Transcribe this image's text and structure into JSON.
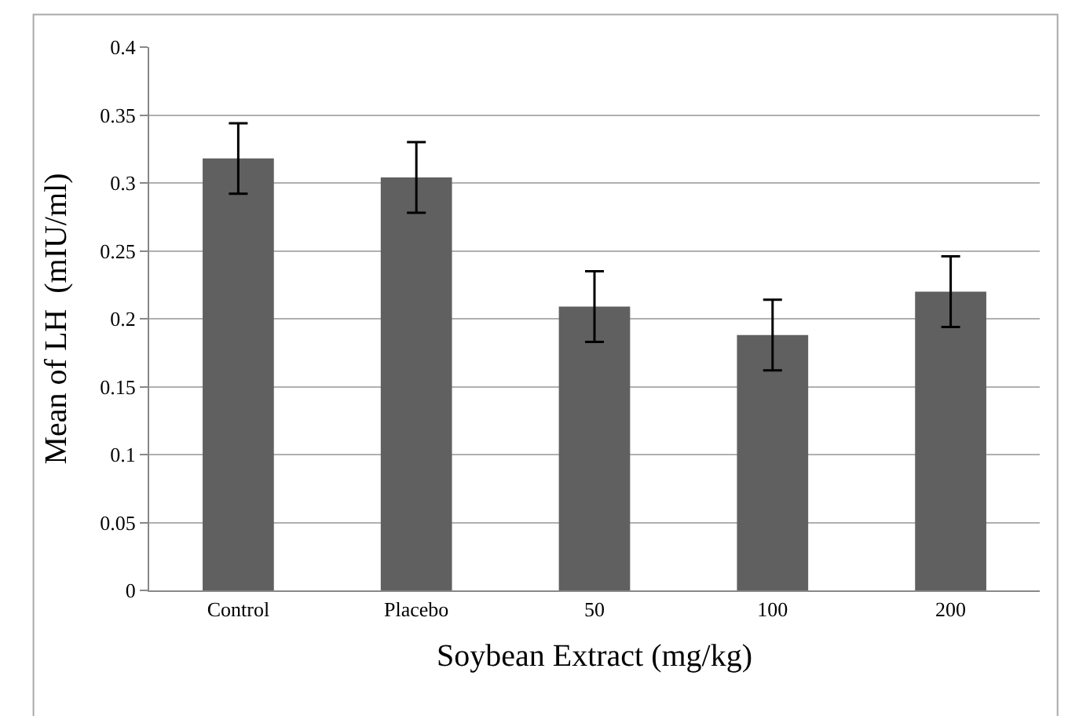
{
  "chart_data": {
    "type": "bar",
    "xlabel": "Soybean Extract (mg/kg)",
    "ylabel": "Mean of LH  (mIU/ml)",
    "categories": [
      "Control",
      "Placebo",
      "50",
      "100",
      "200"
    ],
    "values": [
      0.318,
      0.304,
      0.209,
      0.188,
      0.22
    ],
    "errors": [
      0.026,
      0.026,
      0.026,
      0.026,
      0.026
    ],
    "color": "#606060",
    "ylim": [
      0,
      0.4
    ],
    "yticks": [
      {
        "value": 0,
        "label": "0"
      },
      0.05,
      0.1,
      0.15,
      0.2,
      0.25,
      0.3,
      0.35,
      0.4
    ],
    "grid": "y",
    "legend": false
  }
}
